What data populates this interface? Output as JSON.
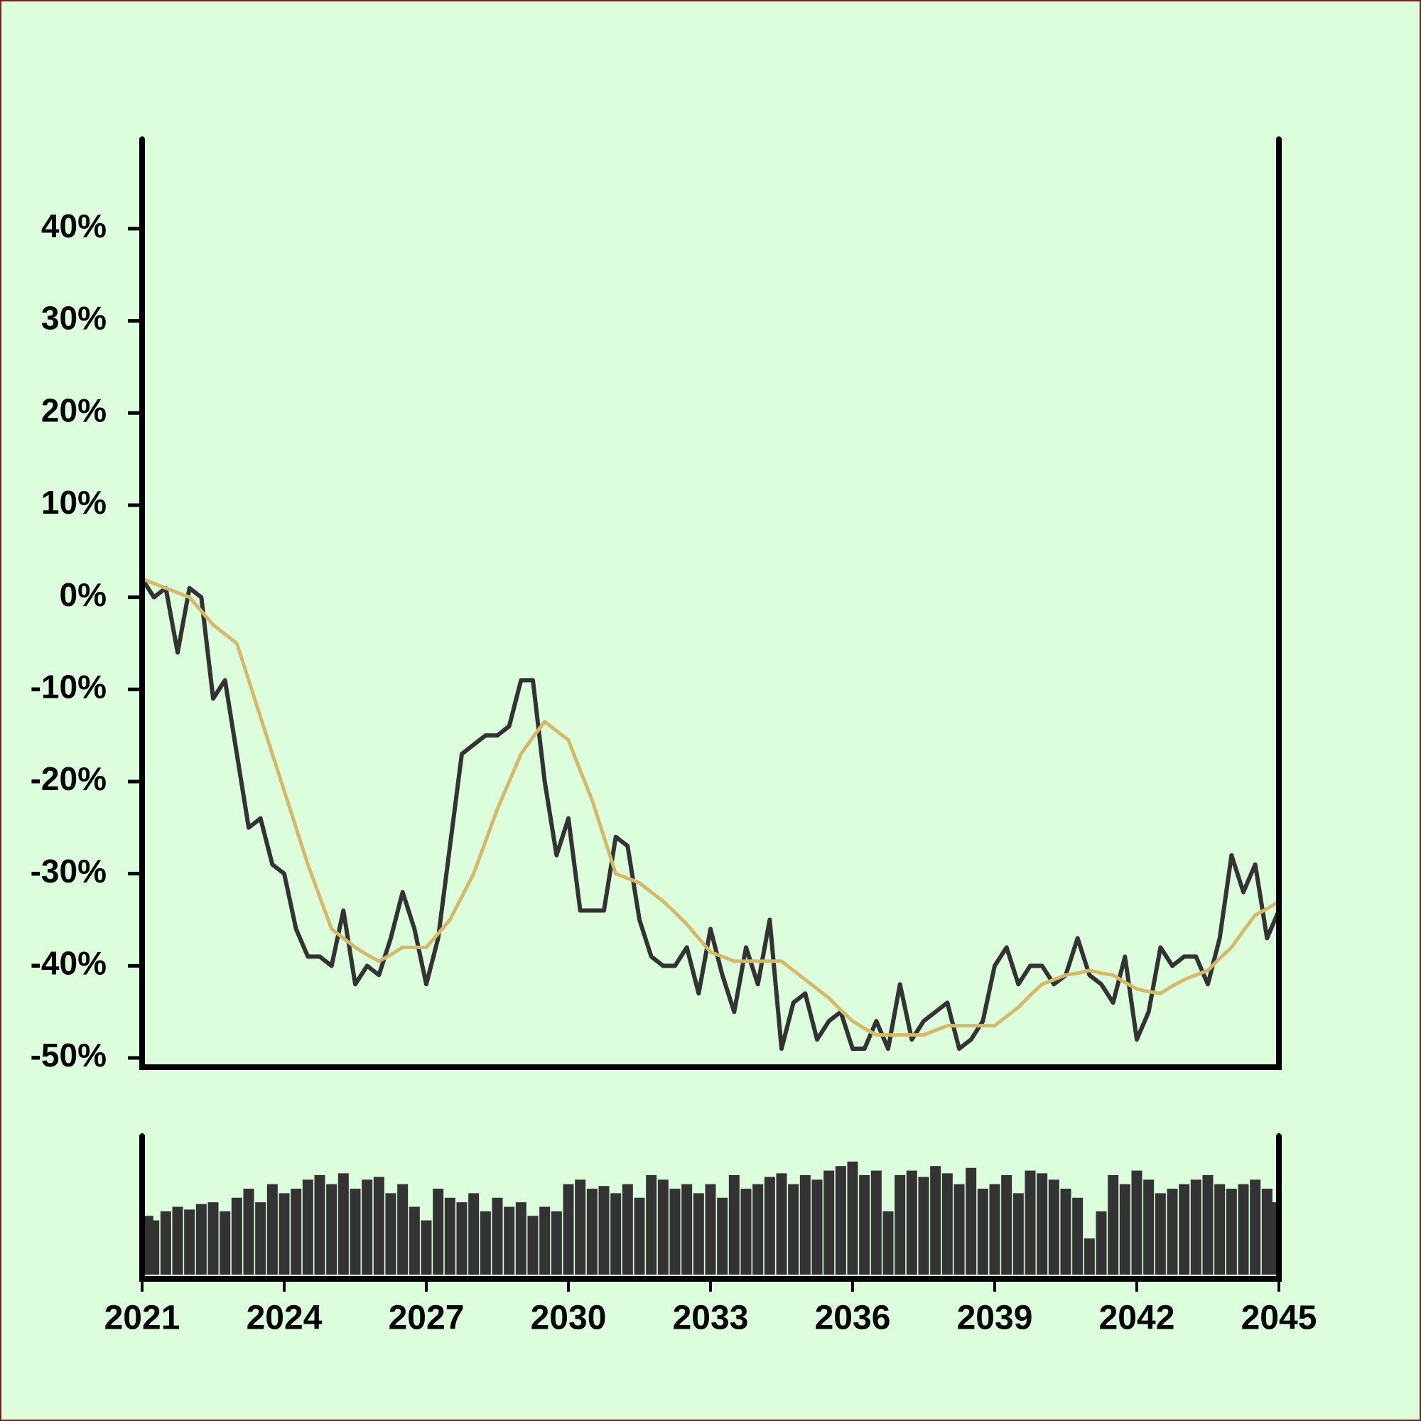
{
  "chart_data": [
    {
      "type": "line",
      "x": [
        2021,
        2021.25,
        2021.5,
        2021.75,
        2022,
        2022.25,
        2022.5,
        2022.75,
        2023,
        2023.25,
        2023.5,
        2023.75,
        2024,
        2024.25,
        2024.5,
        2024.75,
        2025,
        2025.25,
        2025.5,
        2025.75,
        2026,
        2026.25,
        2026.5,
        2026.75,
        2027,
        2027.25,
        2027.5,
        2027.75,
        2028,
        2028.25,
        2028.5,
        2028.75,
        2029,
        2029.25,
        2029.5,
        2029.75,
        2030,
        2030.25,
        2030.5,
        2030.75,
        2031,
        2031.25,
        2031.5,
        2031.75,
        2032,
        2032.25,
        2032.5,
        2032.75,
        2033,
        2033.25,
        2033.5,
        2033.75,
        2034,
        2034.25,
        2034.5,
        2034.75,
        2035,
        2035.25,
        2035.5,
        2035.75,
        2036,
        2036.25,
        2036.5,
        2036.75,
        2037,
        2037.25,
        2037.5,
        2037.75,
        2038,
        2038.25,
        2038.5,
        2038.75,
        2039,
        2039.25,
        2039.5,
        2039.75,
        2040,
        2040.25,
        2040.5,
        2040.75,
        2041,
        2041.25,
        2041.5,
        2041.75,
        2042,
        2042.25,
        2042.5,
        2042.75,
        2043,
        2043.25,
        2043.5,
        2043.75,
        2044,
        2044.25,
        2044.5,
        2044.75,
        2045
      ],
      "series": [
        {
          "color": "#333333",
          "values": [
            2,
            0,
            1,
            -6,
            1,
            0,
            -11,
            -9,
            -17,
            -25,
            -24,
            -29,
            -30,
            -36,
            -39,
            -39,
            -40,
            -34,
            -42,
            -40,
            -41,
            -37,
            -32,
            -36,
            -42,
            -37,
            -27,
            -17,
            -16,
            -15,
            -15,
            -14,
            -9,
            -9,
            -20,
            -28,
            -24,
            -34,
            -34,
            -34,
            -26,
            -27,
            -35,
            -39,
            -40,
            -40,
            -38,
            -43,
            -36,
            -41,
            -45,
            -38,
            -42,
            -35,
            -49,
            -44,
            -43,
            -48,
            -46,
            -45,
            -49,
            -49,
            -46,
            -49,
            -42,
            -48,
            -46,
            -45,
            -44,
            -49,
            -48,
            -46,
            -40,
            -38,
            -42,
            -40,
            -40,
            -42,
            -41,
            -37,
            -41,
            -42,
            -44,
            -39,
            -48,
            -45,
            -38,
            -40,
            -39,
            -39,
            -42,
            -37,
            -28,
            -32,
            -29,
            -37,
            -34
          ]
        },
        {
          "color": "#d4b96a",
          "values": [
            2,
            1.5,
            1,
            0.5,
            0,
            -1.5,
            -3,
            -4,
            -5,
            -9,
            -13,
            -17,
            -21,
            -25,
            -29,
            -32.5,
            -36,
            -37,
            -38,
            -38.8,
            -39.5,
            -38.8,
            -38,
            -38,
            -38,
            -36.5,
            -35,
            -32.5,
            -30,
            -26.5,
            -23,
            -20,
            -17,
            -15.2,
            -13.5,
            -14.5,
            -15.5,
            -18.8,
            -22,
            -26,
            -30,
            -30.5,
            -31,
            -32,
            -33,
            -34.2,
            -35.5,
            -37,
            -38.5,
            -39,
            -39.5,
            -39.5,
            -39.5,
            -39.5,
            -39.5,
            -40.5,
            -41.5,
            -42.5,
            -43.5,
            -44.8,
            -46,
            -46.8,
            -47.5,
            -47.5,
            -47.5,
            -47.5,
            -47.5,
            -47,
            -46.5,
            -46.5,
            -46.5,
            -46.5,
            -46.5,
            -45.5,
            -44.5,
            -43.2,
            -42,
            -41.5,
            -41,
            -40.8,
            -40.5,
            -40.8,
            -41,
            -41.8,
            -42.5,
            -42.8,
            -43,
            -42.2,
            -41.5,
            -41,
            -40.5,
            -39.2,
            -38,
            -36.2,
            -34.5,
            -33.8,
            -33
          ]
        }
      ],
      "xlim": [
        2021,
        2045
      ],
      "ylim": [
        -51,
        49.4
      ],
      "yticks": [
        {
          "value": -50,
          "label": "-50%"
        },
        {
          "value": -40,
          "label": "-40%"
        },
        {
          "value": -30,
          "label": "-30%"
        },
        {
          "value": -20,
          "label": "-20%"
        },
        {
          "value": -10,
          "label": "-10%"
        },
        {
          "value": 0,
          "label": "0%"
        },
        {
          "value": 10,
          "label": "10%"
        },
        {
          "value": 20,
          "label": "20%"
        },
        {
          "value": 30,
          "label": "30%"
        },
        {
          "value": 40,
          "label": "40%"
        }
      ]
    },
    {
      "type": "bar",
      "x": [
        2021,
        2021.25,
        2021.5,
        2021.75,
        2022,
        2022.25,
        2022.5,
        2022.75,
        2023,
        2023.25,
        2023.5,
        2023.75,
        2024,
        2024.25,
        2024.5,
        2024.75,
        2025,
        2025.25,
        2025.5,
        2025.75,
        2026,
        2026.25,
        2026.5,
        2026.75,
        2027,
        2027.25,
        2027.5,
        2027.75,
        2028,
        2028.25,
        2028.5,
        2028.75,
        2029,
        2029.25,
        2029.5,
        2029.75,
        2030,
        2030.25,
        2030.5,
        2030.75,
        2031,
        2031.25,
        2031.5,
        2031.75,
        2032,
        2032.25,
        2032.5,
        2032.75,
        2033,
        2033.25,
        2033.5,
        2033.75,
        2034,
        2034.25,
        2034.5,
        2034.75,
        2035,
        2035.25,
        2035.5,
        2035.75,
        2036,
        2036.25,
        2036.5,
        2036.75,
        2037,
        2037.25,
        2037.5,
        2037.75,
        2038,
        2038.25,
        2038.5,
        2038.75,
        2039,
        2039.25,
        2039.5,
        2039.75,
        2040,
        2040.25,
        2040.5,
        2040.75,
        2041,
        2041.25,
        2041.5,
        2041.75,
        2042,
        2042.25,
        2042.5,
        2042.75,
        2043,
        2043.25,
        2043.5,
        2043.75,
        2044,
        2044.25,
        2044.5,
        2044.75,
        2045
      ],
      "values": [
        65,
        60,
        70,
        75,
        72,
        78,
        80,
        70,
        85,
        95,
        80,
        100,
        90,
        95,
        105,
        110,
        100,
        112,
        95,
        105,
        108,
        90,
        100,
        75,
        60,
        95,
        85,
        80,
        90,
        70,
        85,
        75,
        80,
        65,
        75,
        70,
        100,
        105,
        95,
        98,
        90,
        100,
        85,
        110,
        105,
        95,
        100,
        90,
        100,
        85,
        110,
        95,
        100,
        108,
        112,
        100,
        110,
        105,
        115,
        120,
        125,
        110,
        115,
        70,
        110,
        115,
        108,
        120,
        112,
        100,
        118,
        95,
        100,
        110,
        90,
        115,
        112,
        105,
        95,
        85,
        40,
        70,
        110,
        100,
        115,
        105,
        90,
        95,
        100,
        105,
        110,
        100,
        95,
        100,
        105,
        95,
        80
      ],
      "color": "#333333",
      "xlim": [
        2021,
        2045
      ],
      "ylim": [
        0,
        150
      ],
      "xticks": [
        2021,
        2024,
        2027,
        2030,
        2033,
        2036,
        2039,
        2042,
        2045
      ]
    }
  ]
}
